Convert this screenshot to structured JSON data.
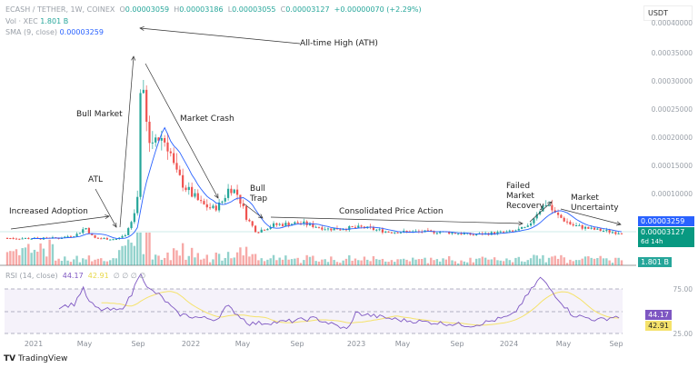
{
  "header": {
    "symbol": "ECASH / TETHER, 1W, COINEX",
    "open_label": "O",
    "open": "0.00003059",
    "high_label": "H",
    "high": "0.00003186",
    "low_label": "L",
    "low": "0.00003055",
    "close_label": "C",
    "close": "0.00003127",
    "change": "+0.00000070 (+2.29%)",
    "volume_label": "Vol · XEC",
    "volume": "1.801 B",
    "sma_label": "SMA (9, close)",
    "sma": "0.00003259"
  },
  "currency": "USDT",
  "price_axis": [
    "0.00040000",
    "0.00035000",
    "0.00030000",
    "0.00025000",
    "0.00020000",
    "0.00015000",
    "0.00010000"
  ],
  "tags": {
    "sma": "0.00003259",
    "close": "0.00003127",
    "countdown": "6d 14h",
    "volume": "1.801 B",
    "rsi": "44.17",
    "rsi_ma": "42.91"
  },
  "rsi": {
    "label": "RSI (14, close)",
    "value": "44.17",
    "ma": "42.91",
    "extra": "∅ ∅ ∅ ∅",
    "levels": [
      "75.00",
      "25.00"
    ]
  },
  "dates": [
    "2021",
    "May",
    "Sep",
    "2022",
    "May",
    "Sep",
    "2023",
    "May",
    "Sep",
    "2024",
    "May",
    "Sep"
  ],
  "annotations": {
    "ath": "All-time High (ATH)",
    "bull_market": "Bull Market",
    "market_crash": "Market Crash",
    "atl": "ATL",
    "increased_adoption": "Increased Adoption",
    "bull_trap": "Bull\nTrap",
    "consolidated": "Consolidated Price Action",
    "failed_recovery": "Failed\nMarket\nRecovery",
    "uncertainty": "Market\nUncertainty"
  },
  "brand": "TradingView",
  "colors": {
    "up": "#26a69a",
    "down": "#ef5350",
    "sma": "#2962ff",
    "rsi": "#7e57c2",
    "rsi_ma": "#f5e26b"
  },
  "chart_data": {
    "type": "candlestick",
    "interval": "1W",
    "y_range": [
      0,
      0.0004
    ],
    "close_path": [
      [
        "2020-11-01",
        2.1e-05
      ],
      [
        "2021-01-15",
        2e-05
      ],
      [
        "2021-03-01",
        2.1e-05
      ],
      [
        "2021-04-10",
        2.7e-05
      ],
      [
        "2021-05-01",
        4e-05
      ],
      [
        "2021-05-20",
        2.1e-05
      ],
      [
        "2021-07-10",
        1.9e-05
      ],
      [
        "2021-08-01",
        2.4e-05
      ],
      [
        "2021-08-20",
        5.6e-05
      ],
      [
        "2021-08-30",
        9.7e-05
      ],
      [
        "2021-09-05",
        0.000298
      ],
      [
        "2021-09-15",
        0.00025
      ],
      [
        "2021-09-25",
        0.000185
      ],
      [
        "2021-10-10",
        0.0002
      ],
      [
        "2021-10-25",
        0.0002
      ],
      [
        "2021-11-10",
        0.000185
      ],
      [
        "2021-11-25",
        0.000137
      ],
      [
        "2021-12-25",
        0.000105
      ],
      [
        "2022-01-25",
        8.1e-05
      ],
      [
        "2022-02-20",
        7.3e-05
      ],
      [
        "2022-03-10",
        8.1e-05
      ],
      [
        "2022-04-01",
        0.000113
      ],
      [
        "2022-04-20",
        9.7e-05
      ],
      [
        "2022-05-10",
        5.6e-05
      ],
      [
        "2022-06-01",
        3.2e-05
      ],
      [
        "2022-07-10",
        4.4e-05
      ],
      [
        "2022-09-10",
        4.8e-05
      ],
      [
        "2022-11-15",
        3.7e-05
      ],
      [
        "2023-02-01",
        4e-05
      ],
      [
        "2023-04-01",
        3.2e-05
      ],
      [
        "2023-08-01",
        3.2e-05
      ],
      [
        "2023-10-15",
        2.7e-05
      ],
      [
        "2024-01-10",
        3.2e-05
      ],
      [
        "2024-02-20",
        4e-05
      ],
      [
        "2024-03-10",
        6.5e-05
      ],
      [
        "2024-04-05",
        8.5e-05
      ],
      [
        "2024-04-20",
        6.5e-05
      ],
      [
        "2024-06-01",
        4.4e-05
      ],
      [
        "2024-07-15",
        3.7e-05
      ],
      [
        "2024-09-10",
        3.1e-05
      ]
    ],
    "rsi_path": [
      [
        "2021-03-01",
        55
      ],
      [
        "2021-04-05",
        58
      ],
      [
        "2021-04-25",
        76
      ],
      [
        "2021-05-10",
        60
      ],
      [
        "2021-06-01",
        52
      ],
      [
        "2021-07-20",
        51
      ],
      [
        "2021-08-15",
        67
      ],
      [
        "2021-09-05",
        96
      ],
      [
        "2021-09-20",
        76
      ],
      [
        "2021-10-20",
        68
      ],
      [
        "2021-12-01",
        47
      ],
      [
        "2022-01-15",
        43
      ],
      [
        "2022-03-01",
        41
      ],
      [
        "2022-03-25",
        56
      ],
      [
        "2022-05-15",
        36
      ],
      [
        "2022-08-01",
        38
      ],
      [
        "2022-10-15",
        42
      ],
      [
        "2022-12-31",
        29
      ],
      [
        "2023-01-15",
        48
      ],
      [
        "2023-05-01",
        40
      ],
      [
        "2023-10-15",
        34
      ],
      [
        "2024-01-15",
        45
      ],
      [
        "2024-03-20",
        88
      ],
      [
        "2024-04-20",
        70
      ],
      [
        "2024-06-01",
        46
      ],
      [
        "2024-08-01",
        40
      ],
      [
        "2024-09-10",
        44
      ]
    ]
  }
}
